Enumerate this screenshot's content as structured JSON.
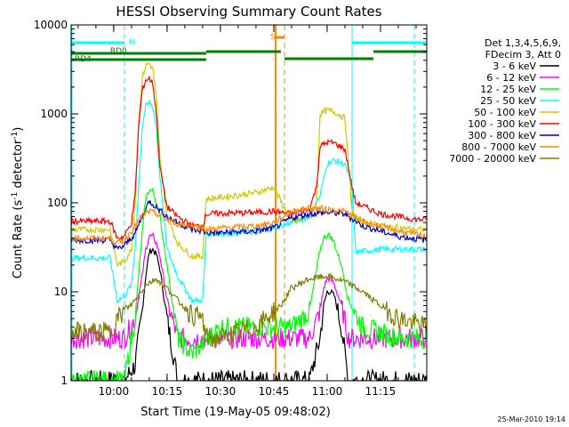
{
  "chart_data": {
    "type": "line",
    "title": "HESSI Observing Summary Count Rates",
    "xlabel": "Start Time (19-May-05 09:48:02)",
    "ylabel_main": "Count Rate (s",
    "ylabel_sup1": "-1",
    "ylabel_mid": " detector",
    "ylabel_sup2": "-1",
    "ylabel_end": ")",
    "y_scale": "log",
    "ylim": [
      1,
      10000
    ],
    "xlim": [
      "09:48:02",
      "11:28:00"
    ],
    "x_ticks": [
      "10:00",
      "10:15",
      "10:30",
      "10:45",
      "11:00",
      "11:15"
    ],
    "y_ticks": [
      "1",
      "10",
      "100",
      "1000",
      "10000"
    ],
    "timestamp": "25-Mar-2010 19:14",
    "legend_header": [
      "Det 1,3,4,5,6,9,",
      "FDecim 3, Att 0"
    ],
    "series": [
      {
        "name": "3 - 6 keV",
        "color": "#000000",
        "x": [
          "09:48",
          "09:59",
          "10:03",
          "10:06",
          "10:08",
          "10:09",
          "10:10",
          "10:11",
          "10:12",
          "10:13",
          "10:15",
          "10:18",
          "10:22",
          "10:30",
          "10:40",
          "10:47",
          "10:50",
          "10:55",
          "10:58",
          "10:59",
          "11:00",
          "11:01",
          "11:02",
          "11:04",
          "11:06",
          "11:10",
          "11:20",
          "11:28"
        ],
        "values": [
          1,
          1,
          1,
          1.5,
          6,
          15,
          28,
          30,
          26,
          18,
          5,
          1,
          1,
          1,
          1,
          1,
          1,
          1,
          3,
          7,
          10,
          10,
          9,
          4,
          1,
          1,
          1,
          1
        ]
      },
      {
        "name": "6 - 12 keV",
        "color": "#ff00ff",
        "x": [
          "09:48",
          "09:59",
          "10:03",
          "10:06",
          "10:08",
          "10:09",
          "10:10",
          "10:11",
          "10:12",
          "10:13",
          "10:15",
          "10:18",
          "10:22",
          "10:30",
          "10:40",
          "10:47",
          "10:50",
          "10:55",
          "10:58",
          "10:59",
          "11:00",
          "11:01",
          "11:02",
          "11:04",
          "11:06",
          "11:10",
          "11:20",
          "11:28"
        ],
        "values": [
          3,
          3,
          3,
          5,
          15,
          30,
          42,
          42,
          35,
          25,
          8,
          3,
          3,
          3,
          3,
          3,
          3,
          3,
          6,
          11,
          14,
          14,
          12,
          7,
          3,
          3,
          3,
          3
        ]
      },
      {
        "name": "12 - 25 keV",
        "color": "#00ff00",
        "x": [
          "09:48",
          "09:59",
          "10:03",
          "10:06",
          "10:08",
          "10:09",
          "10:10",
          "10:11",
          "10:12",
          "10:13",
          "10:15",
          "10:18",
          "10:22",
          "10:30",
          "10:40",
          "10:47",
          "10:50",
          "10:55",
          "10:58",
          "10:59",
          "11:00",
          "11:01",
          "11:02",
          "11:04",
          "11:06",
          "11:10",
          "11:20",
          "11:28"
        ],
        "values": [
          1,
          1,
          1,
          5,
          45,
          110,
          140,
          135,
          100,
          70,
          20,
          3,
          2,
          4,
          4,
          4,
          4,
          6,
          30,
          40,
          44,
          42,
          35,
          20,
          8,
          4,
          3,
          3
        ]
      },
      {
        "name": "25 - 50 keV",
        "color": "#00ffff",
        "x": [
          "09:48",
          "09:59",
          "10:01",
          "10:03",
          "10:05",
          "10:06",
          "10:07",
          "10:08",
          "10:09",
          "10:10",
          "10:11",
          "10:12",
          "10:13",
          "10:15",
          "10:18",
          "10:22",
          "10:25",
          "10:26",
          "10:30",
          "10:40",
          "10:45",
          "10:50",
          "10:55",
          "10:58",
          "11:00",
          "11:02",
          "11:05",
          "11:07",
          "11:08",
          "11:15",
          "11:25",
          "11:28"
        ],
        "values": [
          24,
          24,
          8,
          9,
          12,
          30,
          150,
          700,
          1200,
          1350,
          1200,
          700,
          200,
          30,
          15,
          8,
          8,
          45,
          45,
          48,
          52,
          60,
          70,
          120,
          280,
          300,
          270,
          150,
          28,
          30,
          30,
          30
        ]
      },
      {
        "name": "50 - 100 keV",
        "color": "#cccc00",
        "x": [
          "09:48",
          "09:59",
          "10:01",
          "10:03",
          "10:05",
          "10:06",
          "10:07",
          "10:08",
          "10:09",
          "10:10",
          "10:11",
          "10:12",
          "10:13",
          "10:15",
          "10:18",
          "10:22",
          "10:25",
          "10:26",
          "10:30",
          "10:40",
          "10:45",
          "10:50",
          "10:55",
          "10:57",
          "10:58",
          "11:00",
          "11:02",
          "11:05",
          "11:07",
          "11:08",
          "11:15",
          "11:25",
          "11:28"
        ],
        "values": [
          50,
          50,
          20,
          22,
          30,
          100,
          800,
          2500,
          3500,
          3700,
          3200,
          1500,
          300,
          70,
          35,
          25,
          25,
          110,
          115,
          130,
          150,
          60,
          70,
          100,
          1000,
          1100,
          1050,
          900,
          80,
          65,
          55,
          50,
          50
        ]
      },
      {
        "name": "100 - 300 keV",
        "color": "#ff0000",
        "x": [
          "09:48",
          "09:59",
          "10:01",
          "10:03",
          "10:05",
          "10:06",
          "10:07",
          "10:08",
          "10:09",
          "10:10",
          "10:11",
          "10:12",
          "10:13",
          "10:15",
          "10:18",
          "10:22",
          "10:25",
          "10:26",
          "10:30",
          "10:40",
          "10:45",
          "10:50",
          "10:55",
          "10:57",
          "10:58",
          "11:00",
          "11:02",
          "11:05",
          "11:07",
          "11:08",
          "11:15",
          "11:25",
          "11:28"
        ],
        "values": [
          62,
          62,
          40,
          42,
          60,
          120,
          700,
          1800,
          2400,
          2500,
          2200,
          1000,
          250,
          90,
          70,
          55,
          55,
          75,
          76,
          78,
          80,
          75,
          85,
          150,
          430,
          480,
          470,
          400,
          150,
          100,
          75,
          65,
          65
        ]
      },
      {
        "name": "300 - 800 keV",
        "color": "#0000cc",
        "x": [
          "09:48",
          "09:59",
          "10:01",
          "10:03",
          "10:06",
          "10:08",
          "10:10",
          "10:12",
          "10:15",
          "10:18",
          "10:22",
          "10:25",
          "10:26",
          "10:30",
          "10:40",
          "10:45",
          "10:50",
          "10:55",
          "11:00",
          "11:05",
          "11:10",
          "11:20",
          "11:28"
        ],
        "values": [
          38,
          38,
          30,
          33,
          45,
          70,
          105,
          90,
          70,
          60,
          50,
          48,
          46,
          46,
          48,
          52,
          68,
          75,
          78,
          75,
          55,
          42,
          38
        ]
      },
      {
        "name": "800 - 7000 keV",
        "color": "#ff8800",
        "x": [
          "09:48",
          "09:59",
          "10:01",
          "10:03",
          "10:06",
          "10:08",
          "10:10",
          "10:12",
          "10:15",
          "10:18",
          "10:22",
          "10:25",
          "10:26",
          "10:30",
          "10:40",
          "10:45",
          "10:50",
          "10:55",
          "11:00",
          "11:05",
          "11:10",
          "11:20",
          "11:28"
        ],
        "values": [
          40,
          40,
          35,
          38,
          55,
          72,
          80,
          75,
          65,
          58,
          55,
          52,
          50,
          52,
          55,
          60,
          80,
          88,
          85,
          80,
          62,
          48,
          42
        ]
      },
      {
        "name": "7000 - 20000 keV",
        "color": "#808000",
        "x": [
          "09:48",
          "09:59",
          "10:01",
          "10:03",
          "10:06",
          "10:09",
          "10:12",
          "10:15",
          "10:18",
          "10:22",
          "10:25",
          "10:26",
          "10:30",
          "10:35",
          "10:40",
          "10:45",
          "10:47",
          "10:50",
          "10:55",
          "11:00",
          "11:05",
          "11:10",
          "11:15",
          "11:20",
          "11:28"
        ],
        "values": [
          3.5,
          3.5,
          5,
          6,
          8,
          12,
          14,
          11,
          8,
          5.5,
          5,
          3,
          3,
          3.5,
          4,
          6,
          7,
          11,
          14,
          15,
          13,
          10,
          7,
          5,
          4
        ]
      }
    ],
    "overlays": {
      "saa_label": "S",
      "night_label": "N",
      "rd0_label": "RD0",
      "rd4_label": "RD4"
    }
  }
}
